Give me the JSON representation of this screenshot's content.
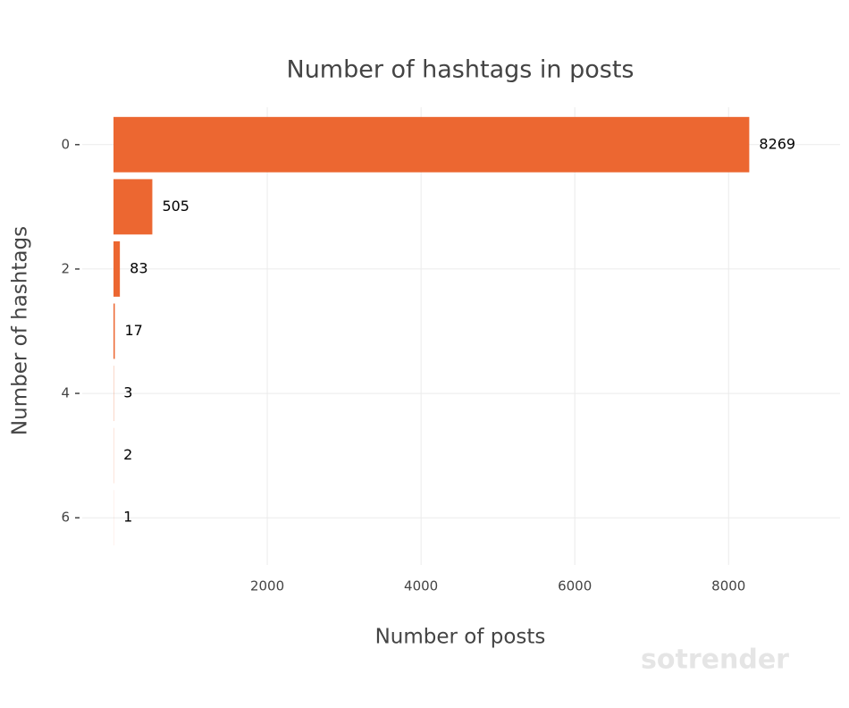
{
  "chart_data": {
    "type": "barh",
    "title": "Number of hashtags in posts",
    "x_label": "Number of posts",
    "y_label": "Number of hashtags",
    "categories": [
      "0",
      null,
      "2",
      null,
      "4",
      null,
      "6"
    ],
    "values": [
      8269,
      505,
      83,
      17,
      3,
      2,
      1
    ],
    "color": "#ec6731",
    "xlim": [
      0,
      9450
    ],
    "xticks": [
      2000,
      4000,
      6000,
      8000
    ],
    "grid": true,
    "watermark": "sotrender"
  }
}
